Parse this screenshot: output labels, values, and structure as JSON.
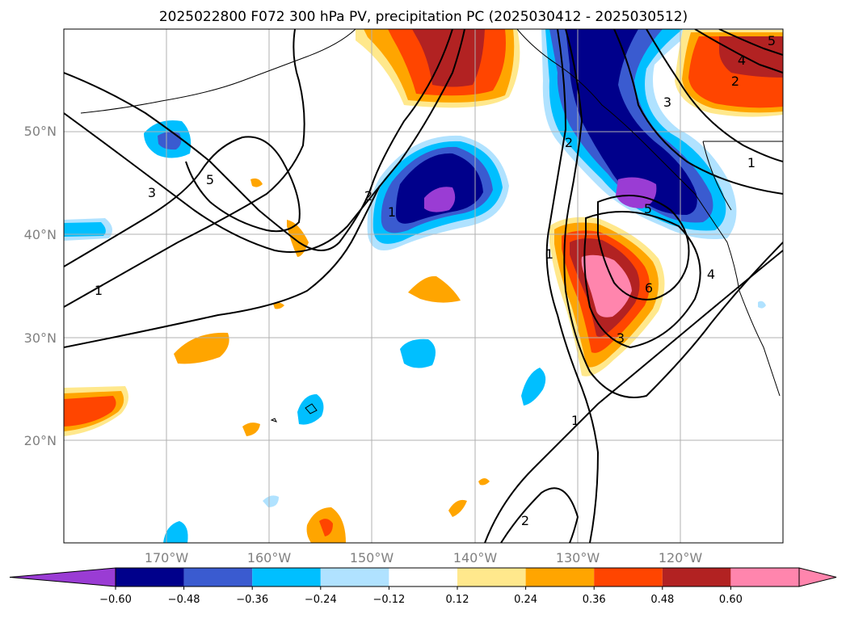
{
  "title": "2025022800 F072 300 hPa PV, precipitation PC (2025030412 - 2025030512)",
  "map": {
    "lat_labels": [
      "50°N",
      "40°N",
      "30°N",
      "20°N"
    ],
    "lon_labels": [
      "170°W",
      "160°W",
      "150°W",
      "140°W",
      "130°W",
      "120°W"
    ],
    "contour_labels": [
      "1",
      "1",
      "1",
      "1",
      "1",
      "2",
      "2",
      "2",
      "3",
      "3",
      "3",
      "4",
      "4",
      "5",
      "5",
      "6",
      "5",
      "2"
    ]
  },
  "colorbar": {
    "ticks": [
      "−0.60",
      "−0.48",
      "−0.36",
      "−0.24",
      "−0.12",
      "0.12",
      "0.24",
      "0.36",
      "0.48",
      "0.60"
    ],
    "colors": [
      "#9a3cd4",
      "#00008b",
      "#3a5bd0",
      "#00bfff",
      "#b0e2ff",
      "#ffffff",
      "#ffe88c",
      "#ffa500",
      "#ff4500",
      "#b22222",
      "#ff85ad",
      "#ff85ad"
    ]
  },
  "legend_colors": {
    "purple": "#9a3cd4",
    "navy": "#00008b",
    "royal": "#3a5bd0",
    "sky": "#00bfff",
    "pale_blue": "#b0e2ff",
    "pale_yellow": "#ffe88c",
    "orange": "#ffa500",
    "red_orange": "#ff4500",
    "firebrick": "#b22222",
    "pink": "#ff85ad"
  }
}
